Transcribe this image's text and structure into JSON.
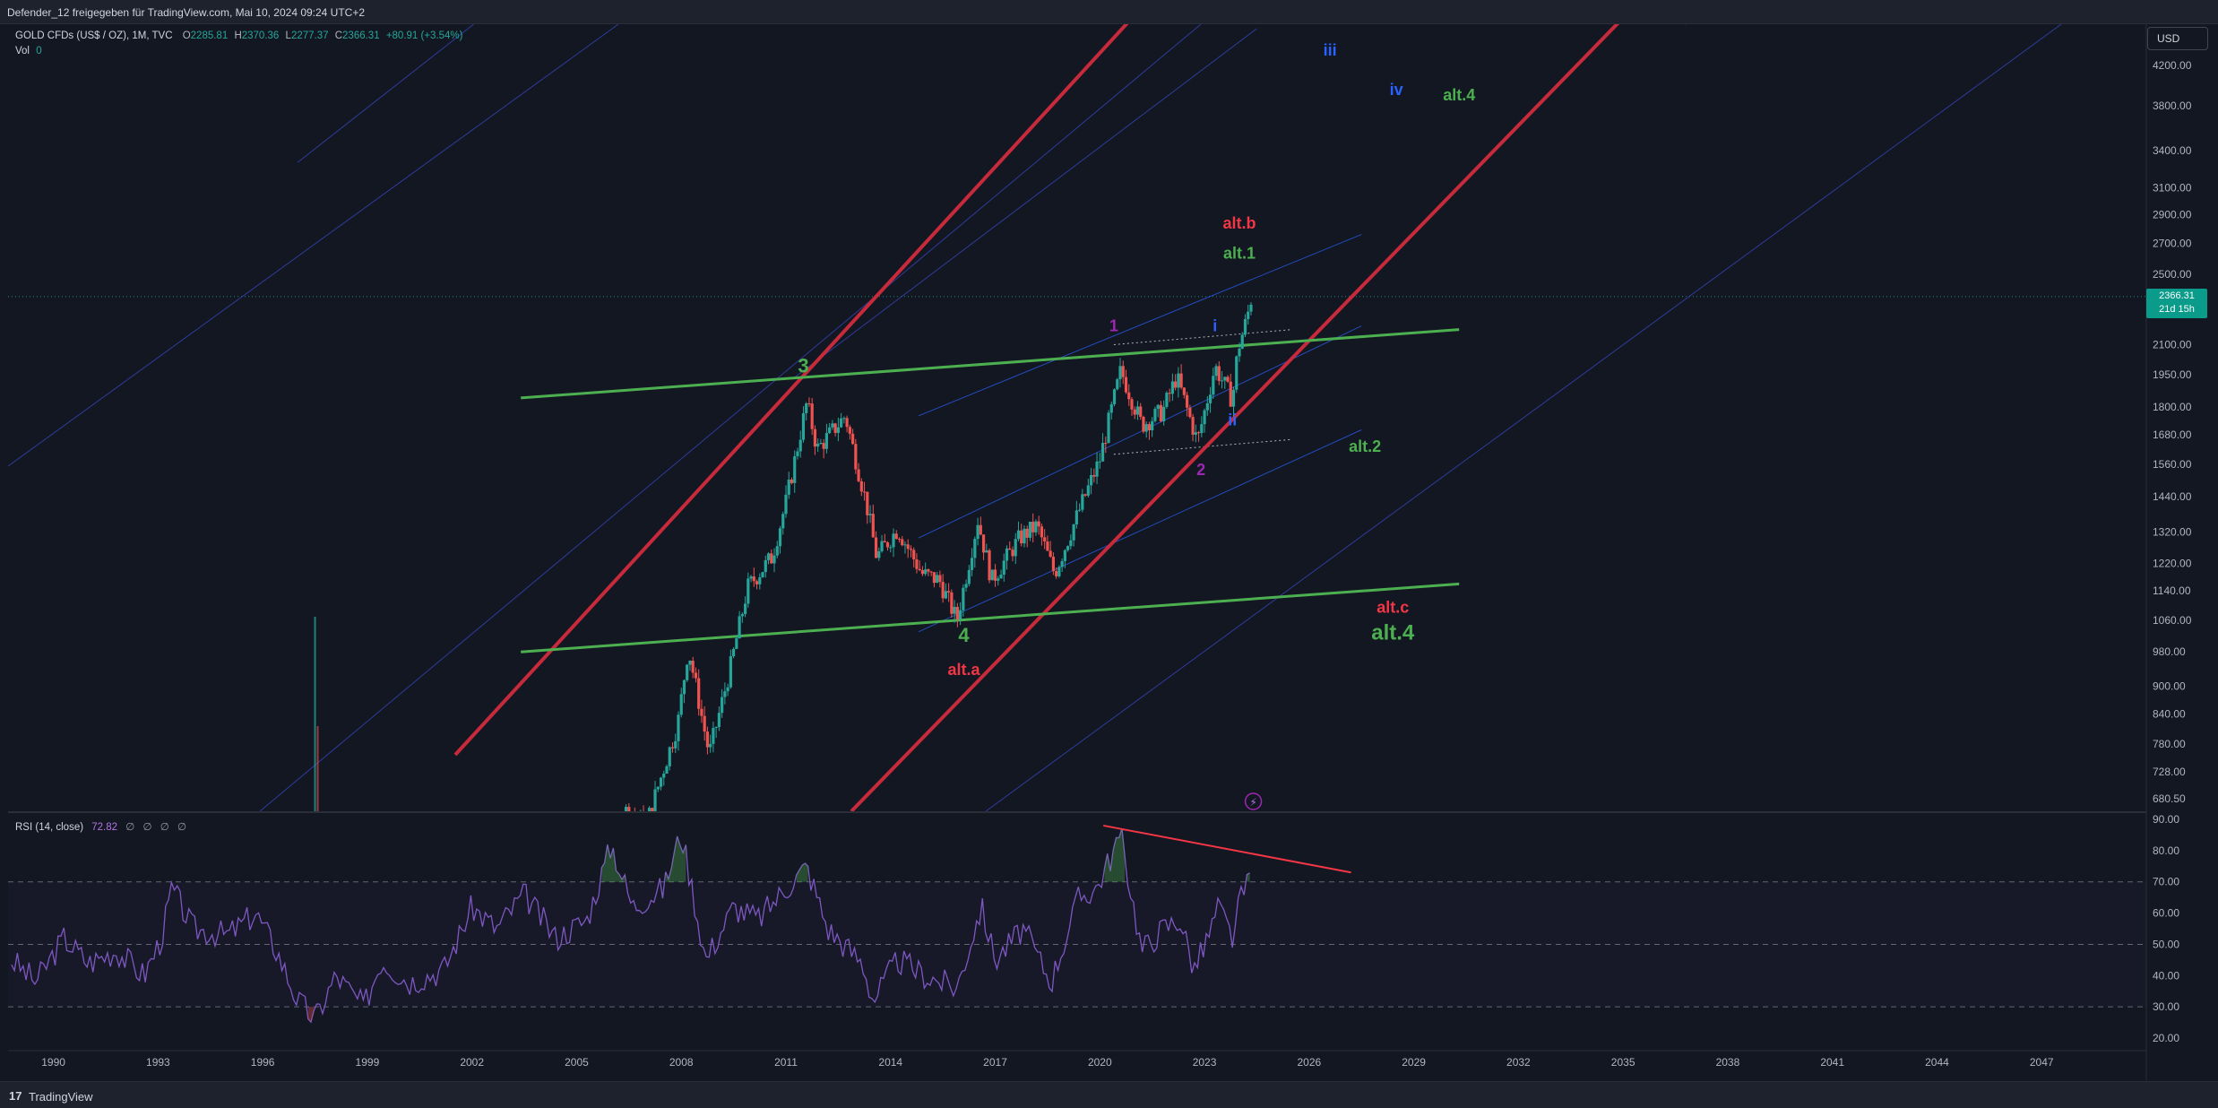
{
  "header": {
    "share_text": "Defender_12 freigegeben für TradingView.com, Mai 10, 2024 09:24 UTC+2"
  },
  "footer": {
    "brand_mark": "17",
    "brand_name": "TradingView"
  },
  "legend": {
    "symbol": "GOLD CFDs (US$ / OZ), 1M, TVC",
    "o_label": "O",
    "o_value": "2285.81",
    "h_label": "H",
    "h_value": "2370.36",
    "l_label": "L",
    "l_value": "2277.37",
    "c_label": "C",
    "c_value": "2366.31",
    "change": "+80.91 (+3.54%)",
    "vol_label": "Vol",
    "vol_value": "0"
  },
  "rsi_legend": {
    "label": "RSI (14, close)",
    "value": "72.82",
    "symbols": [
      "∅",
      "∅",
      "∅",
      "∅"
    ]
  },
  "currency_button": "USD",
  "last_price": {
    "price": "2366.31",
    "countdown": "21d 15h"
  },
  "chart_data": [
    {
      "type": "candlestick",
      "symbol": "GOLD CFDs (US$ / OZ)",
      "interval": "1M",
      "scale": "log",
      "x_tick_labels": [
        "1990",
        "1993",
        "1996",
        "1999",
        "2002",
        "2005",
        "2008",
        "2011",
        "2014",
        "2017",
        "2020",
        "2023",
        "2026",
        "2029",
        "2032",
        "2035",
        "2038",
        "2041",
        "2044",
        "2047"
      ],
      "x_range": [
        1988.7,
        2050.0
      ],
      "y_tick_labels": [
        "4200.00",
        "3800.00",
        "3400.00",
        "3100.00",
        "2900.00",
        "2700.00",
        "2500.00",
        "2100.00",
        "1950.00",
        "1800.00",
        "1680.00",
        "1560.00",
        "1440.00",
        "1320.00",
        "1220.00",
        "1140.00",
        "1060.00",
        "980.00",
        "900.00",
        "840.00",
        "780.00",
        "728.00",
        "680.50"
      ],
      "y_range": [
        660,
        4650
      ],
      "last_price_line": 2366.31,
      "price_anchors": [
        {
          "t": 2004.0,
          "p": 395
        },
        {
          "t": 2005.5,
          "p": 440
        },
        {
          "t": 2006.4,
          "p": 660
        },
        {
          "t": 2007.0,
          "p": 640
        },
        {
          "t": 2007.9,
          "p": 820
        },
        {
          "t": 2008.2,
          "p": 990
        },
        {
          "t": 2008.8,
          "p": 760
        },
        {
          "t": 2009.4,
          "p": 940
        },
        {
          "t": 2009.9,
          "p": 1150
        },
        {
          "t": 2010.6,
          "p": 1240
        },
        {
          "t": 2011.0,
          "p": 1420
        },
        {
          "t": 2011.6,
          "p": 1820
        },
        {
          "t": 2011.9,
          "p": 1620
        },
        {
          "t": 2012.7,
          "p": 1760
        },
        {
          "t": 2013.3,
          "p": 1420
        },
        {
          "t": 2013.6,
          "p": 1240
        },
        {
          "t": 2014.2,
          "p": 1330
        },
        {
          "t": 2014.9,
          "p": 1190
        },
        {
          "t": 2015.4,
          "p": 1170
        },
        {
          "t": 2015.9,
          "p": 1060
        },
        {
          "t": 2016.5,
          "p": 1360
        },
        {
          "t": 2016.9,
          "p": 1170
        },
        {
          "t": 2017.7,
          "p": 1300
        },
        {
          "t": 2018.2,
          "p": 1340
        },
        {
          "t": 2018.7,
          "p": 1190
        },
        {
          "t": 2019.5,
          "p": 1420
        },
        {
          "t": 2020.0,
          "p": 1580
        },
        {
          "t": 2020.6,
          "p": 1970
        },
        {
          "t": 2021.2,
          "p": 1720
        },
        {
          "t": 2021.8,
          "p": 1780
        },
        {
          "t": 2022.2,
          "p": 1940
        },
        {
          "t": 2022.8,
          "p": 1650
        },
        {
          "t": 2023.3,
          "p": 1990
        },
        {
          "t": 2023.8,
          "p": 1830
        },
        {
          "t": 2023.95,
          "p": 2070
        },
        {
          "t": 2024.2,
          "p": 2230
        },
        {
          "t": 2024.35,
          "p": 2366
        }
      ],
      "volume_spike": {
        "t": 1997.5
      },
      "wave_labels": [
        {
          "text": "3",
          "t": 2011.5,
          "p": 1960,
          "color": "#4caf50"
        },
        {
          "text": "4",
          "t": 2016.1,
          "p": 1005,
          "color": "#4caf50"
        },
        {
          "text": "alt.a",
          "t": 2016.1,
          "p": 925,
          "color": "#f23645"
        },
        {
          "text": "1",
          "t": 2020.4,
          "p": 2170,
          "color": "#9c27b0"
        },
        {
          "text": "2",
          "t": 2022.9,
          "p": 1520,
          "color": "#9c27b0"
        },
        {
          "text": "i",
          "t": 2023.3,
          "p": 2170,
          "color": "#2962ff"
        },
        {
          "text": "ii",
          "t": 2023.8,
          "p": 1720,
          "color": "#2962ff"
        },
        {
          "text": "iii",
          "t": 2026.6,
          "p": 4300,
          "color": "#2962ff"
        },
        {
          "text": "iv",
          "t": 2028.5,
          "p": 3900,
          "color": "#2962ff"
        },
        {
          "text": "alt.b",
          "t": 2024.0,
          "p": 2800,
          "color": "#f23645"
        },
        {
          "text": "alt.1",
          "t": 2024.0,
          "p": 2600,
          "color": "#4caf50"
        },
        {
          "text": "alt.2",
          "t": 2027.6,
          "p": 1610,
          "color": "#4caf50"
        },
        {
          "text": "alt.4",
          "t": 2030.3,
          "p": 3850,
          "color": "#4caf50"
        },
        {
          "text": "alt.c",
          "t": 2028.4,
          "p": 1080,
          "color": "#f23645"
        },
        {
          "text": "alt.4",
          "t": 2028.4,
          "p": 1010,
          "color": "#4caf50"
        }
      ],
      "trendlines": [
        {
          "name": "green-upper",
          "color": "#4caf50",
          "from": {
            "t": 2003.4,
            "p": 1840
          },
          "to": {
            "t": 2030.3,
            "p": 2180
          }
        },
        {
          "name": "green-lower",
          "color": "#4caf50",
          "from": {
            "t": 2003.4,
            "p": 980
          },
          "to": {
            "t": 2030.3,
            "p": 1160
          }
        }
      ]
    },
    {
      "type": "line",
      "name": "RSI (14, close)",
      "x_range": [
        1988.7,
        2050.0
      ],
      "y_tick_labels": [
        "90.00",
        "80.00",
        "70.00",
        "60.00",
        "50.00",
        "40.00",
        "30.00",
        "20.00"
      ],
      "y_range": [
        16,
        92
      ],
      "bands": [
        70,
        50,
        30
      ],
      "rsi_anchors": [
        {
          "t": 1988.8,
          "v": 45
        },
        {
          "t": 1989.5,
          "v": 38
        },
        {
          "t": 1990.3,
          "v": 52
        },
        {
          "t": 1991.0,
          "v": 44
        },
        {
          "t": 1991.8,
          "v": 48
        },
        {
          "t": 1992.6,
          "v": 40
        },
        {
          "t": 1993.1,
          "v": 52
        },
        {
          "t": 1993.4,
          "v": 68
        },
        {
          "t": 1994.0,
          "v": 55
        },
        {
          "t": 1995.0,
          "v": 53
        },
        {
          "t": 1995.8,
          "v": 60
        },
        {
          "t": 1996.4,
          "v": 48
        },
        {
          "t": 1997.0,
          "v": 32
        },
        {
          "t": 1997.5,
          "v": 26
        },
        {
          "t": 1998.1,
          "v": 40
        },
        {
          "t": 1998.9,
          "v": 30
        },
        {
          "t": 1999.4,
          "v": 45
        },
        {
          "t": 2000.2,
          "v": 38
        },
        {
          "t": 2001.2,
          "v": 42
        },
        {
          "t": 2002.0,
          "v": 62
        },
        {
          "t": 2002.7,
          "v": 55
        },
        {
          "t": 2003.5,
          "v": 66
        },
        {
          "t": 2004.4,
          "v": 52
        },
        {
          "t": 2005.3,
          "v": 58
        },
        {
          "t": 2006.0,
          "v": 82
        },
        {
          "t": 2006.6,
          "v": 62
        },
        {
          "t": 2007.5,
          "v": 68
        },
        {
          "t": 2008.0,
          "v": 86
        },
        {
          "t": 2008.7,
          "v": 45
        },
        {
          "t": 2009.5,
          "v": 62
        },
        {
          "t": 2010.2,
          "v": 58
        },
        {
          "t": 2011.0,
          "v": 68
        },
        {
          "t": 2011.6,
          "v": 75
        },
        {
          "t": 2012.2,
          "v": 55
        },
        {
          "t": 2013.2,
          "v": 44
        },
        {
          "t": 2013.5,
          "v": 32
        },
        {
          "t": 2014.2,
          "v": 45
        },
        {
          "t": 2015.0,
          "v": 40
        },
        {
          "t": 2015.9,
          "v": 36
        },
        {
          "t": 2016.6,
          "v": 62
        },
        {
          "t": 2017.0,
          "v": 45
        },
        {
          "t": 2017.8,
          "v": 55
        },
        {
          "t": 2018.6,
          "v": 38
        },
        {
          "t": 2019.4,
          "v": 65
        },
        {
          "t": 2019.9,
          "v": 68
        },
        {
          "t": 2020.6,
          "v": 85
        },
        {
          "t": 2021.2,
          "v": 48
        },
        {
          "t": 2021.8,
          "v": 55
        },
        {
          "t": 2022.3,
          "v": 58
        },
        {
          "t": 2022.7,
          "v": 42
        },
        {
          "t": 2023.1,
          "v": 52
        },
        {
          "t": 2023.4,
          "v": 62
        },
        {
          "t": 2023.8,
          "v": 52
        },
        {
          "t": 2024.0,
          "v": 63
        },
        {
          "t": 2024.35,
          "v": 72.82
        }
      ],
      "divergence_line": {
        "color": "#f23645",
        "from": {
          "t": 2020.1,
          "v": 88
        },
        "to": {
          "t": 2027.2,
          "v": 73
        }
      }
    }
  ]
}
